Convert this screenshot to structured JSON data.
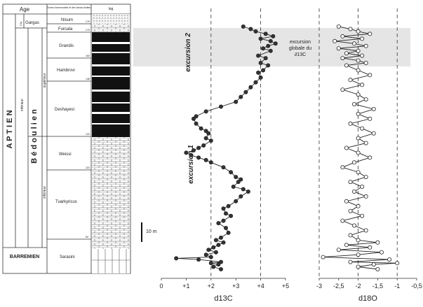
{
  "strat_column": {
    "header_age": "Age",
    "header_zones": "Zones d'ammonites et des bancs-limites",
    "header_log": "log",
    "stage_aptien": "A P T I E N",
    "substage_bedoulien": "B é d o u l i e n",
    "substage_gargas": "Gargas",
    "sub_clansayes": "Cla",
    "sub_inferieur_upper": "inférieur",
    "sub_superieur": "supérieur",
    "sub_inferieur_lower": "inférieur",
    "stage_barremien": "BARREMIEN",
    "zones": [
      "Nisum",
      "Furcata",
      "Grandis",
      "Hambrovi",
      "Deshayesi",
      "Weissi",
      "Tuarkyricus",
      "Sarasini"
    ],
    "bed_numbers": [
      "179",
      "170",
      "160",
      "148",
      "120",
      "115",
      "60"
    ],
    "scale_bar": "10 m"
  },
  "annotations": {
    "excursion_1": "excursion 1",
    "excursion_2": "excursion 2",
    "excursion_globale": [
      "excursion",
      "globale du",
      "∂13C"
    ]
  },
  "chart_data": [
    {
      "type": "line",
      "title": "",
      "xlabel": "d13C",
      "ylabel": "",
      "xlim": [
        0,
        5
      ],
      "xticks": [
        "0",
        "+1",
        "+2",
        "+3",
        "+4",
        "+5"
      ],
      "reference_lines": [
        2,
        4
      ],
      "series": [
        {
          "points": [
            [
              3.3,
              0.0
            ],
            [
              3.6,
              0.01
            ],
            [
              3.8,
              0.02
            ],
            [
              4.2,
              0.03
            ],
            [
              4.5,
              0.04
            ],
            [
              4.0,
              0.05
            ],
            [
              4.4,
              0.06
            ],
            [
              4.6,
              0.07
            ],
            [
              4.3,
              0.08
            ],
            [
              4.1,
              0.09
            ],
            [
              4.4,
              0.1
            ],
            [
              3.9,
              0.12
            ],
            [
              4.2,
              0.13
            ],
            [
              4.0,
              0.15
            ],
            [
              4.3,
              0.16
            ],
            [
              4.1,
              0.18
            ],
            [
              3.9,
              0.19
            ],
            [
              4.0,
              0.21
            ],
            [
              3.8,
              0.23
            ],
            [
              3.6,
              0.25
            ],
            [
              3.4,
              0.27
            ],
            [
              3.2,
              0.29
            ],
            [
              3.0,
              0.31
            ],
            [
              2.4,
              0.33
            ],
            [
              1.8,
              0.35
            ],
            [
              1.4,
              0.37
            ],
            [
              1.3,
              0.38
            ],
            [
              1.4,
              0.4
            ],
            [
              1.6,
              0.42
            ],
            [
              1.8,
              0.43
            ],
            [
              1.9,
              0.44
            ],
            [
              1.8,
              0.46
            ],
            [
              2.0,
              0.47
            ],
            [
              1.7,
              0.49
            ],
            [
              1.5,
              0.5
            ],
            [
              1.3,
              0.51
            ],
            [
              1.0,
              0.52
            ],
            [
              1.2,
              0.53
            ],
            [
              1.5,
              0.54
            ],
            [
              1.8,
              0.55
            ],
            [
              2.0,
              0.56
            ],
            [
              2.5,
              0.58
            ],
            [
              2.8,
              0.6
            ],
            [
              3.0,
              0.62
            ],
            [
              3.2,
              0.63
            ],
            [
              3.1,
              0.64
            ],
            [
              2.9,
              0.66
            ],
            [
              3.3,
              0.67
            ],
            [
              3.5,
              0.68
            ],
            [
              3.2,
              0.7
            ],
            [
              3.0,
              0.72
            ],
            [
              2.7,
              0.74
            ],
            [
              2.5,
              0.75
            ],
            [
              2.6,
              0.77
            ],
            [
              2.8,
              0.78
            ],
            [
              2.5,
              0.8
            ],
            [
              2.3,
              0.81
            ],
            [
              2.6,
              0.83
            ],
            [
              2.7,
              0.85
            ],
            [
              2.4,
              0.87
            ],
            [
              2.2,
              0.88
            ],
            [
              2.5,
              0.89
            ],
            [
              2.3,
              0.9
            ],
            [
              2.1,
              0.91
            ],
            [
              1.9,
              0.92
            ],
            [
              2.2,
              0.93
            ],
            [
              1.8,
              0.94
            ],
            [
              2.0,
              0.95
            ],
            [
              0.6,
              0.955
            ],
            [
              1.5,
              0.96
            ],
            [
              2.4,
              0.97
            ],
            [
              2.0,
              0.975
            ],
            [
              2.3,
              0.98
            ],
            [
              2.1,
              0.99
            ],
            [
              2.4,
              1.0
            ]
          ]
        }
      ]
    },
    {
      "type": "line",
      "title": "",
      "xlabel": "d18O",
      "ylabel": "",
      "xlim": [
        -3,
        -0.5
      ],
      "xticks": [
        "-3",
        "-2,5",
        "-2",
        "-1,5",
        "-1",
        "-0,5"
      ],
      "reference_lines": [
        -3,
        -2,
        -1
      ],
      "series": [
        {
          "points": [
            [
              -2.5,
              0.0
            ],
            [
              -2.2,
              0.01
            ],
            [
              -2.0,
              0.02
            ],
            [
              -1.7,
              0.03
            ],
            [
              -2.4,
              0.04
            ],
            [
              -1.9,
              0.05
            ],
            [
              -2.6,
              0.06
            ],
            [
              -2.1,
              0.07
            ],
            [
              -1.8,
              0.08
            ],
            [
              -2.5,
              0.09
            ],
            [
              -2.0,
              0.1
            ],
            [
              -2.3,
              0.11
            ],
            [
              -1.9,
              0.12
            ],
            [
              -2.4,
              0.13
            ],
            [
              -2.0,
              0.14
            ],
            [
              -1.8,
              0.15
            ],
            [
              -2.3,
              0.16
            ],
            [
              -2.0,
              0.18
            ],
            [
              -1.7,
              0.2
            ],
            [
              -2.2,
              0.22
            ],
            [
              -1.9,
              0.24
            ],
            [
              -2.4,
              0.26
            ],
            [
              -2.0,
              0.28
            ],
            [
              -1.8,
              0.3
            ],
            [
              -2.1,
              0.32
            ],
            [
              -1.6,
              0.34
            ],
            [
              -2.0,
              0.36
            ],
            [
              -1.7,
              0.38
            ],
            [
              -2.2,
              0.4
            ],
            [
              -1.9,
              0.42
            ],
            [
              -1.6,
              0.44
            ],
            [
              -2.0,
              0.46
            ],
            [
              -1.8,
              0.48
            ],
            [
              -2.3,
              0.5
            ],
            [
              -2.0,
              0.52
            ],
            [
              -1.7,
              0.54
            ],
            [
              -2.1,
              0.56
            ],
            [
              -2.4,
              0.58
            ],
            [
              -2.0,
              0.6
            ],
            [
              -1.8,
              0.62
            ],
            [
              -2.2,
              0.64
            ],
            [
              -1.9,
              0.66
            ],
            [
              -2.1,
              0.68
            ],
            [
              -1.8,
              0.7
            ],
            [
              -2.3,
              0.72
            ],
            [
              -2.0,
              0.74
            ],
            [
              -2.2,
              0.76
            ],
            [
              -1.9,
              0.78
            ],
            [
              -2.4,
              0.8
            ],
            [
              -2.1,
              0.82
            ],
            [
              -1.8,
              0.84
            ],
            [
              -2.2,
              0.86
            ],
            [
              -2.0,
              0.88
            ],
            [
              -1.5,
              0.89
            ],
            [
              -2.3,
              0.9
            ],
            [
              -1.7,
              0.91
            ],
            [
              -2.5,
              0.92
            ],
            [
              -1.4,
              0.93
            ],
            [
              -2.0,
              0.94
            ],
            [
              -2.9,
              0.95
            ],
            [
              -1.2,
              0.96
            ],
            [
              -2.2,
              0.97
            ],
            [
              -1.0,
              0.975
            ],
            [
              -1.6,
              0.98
            ],
            [
              -2.0,
              0.99
            ],
            [
              -1.5,
              1.0
            ]
          ]
        }
      ]
    }
  ]
}
